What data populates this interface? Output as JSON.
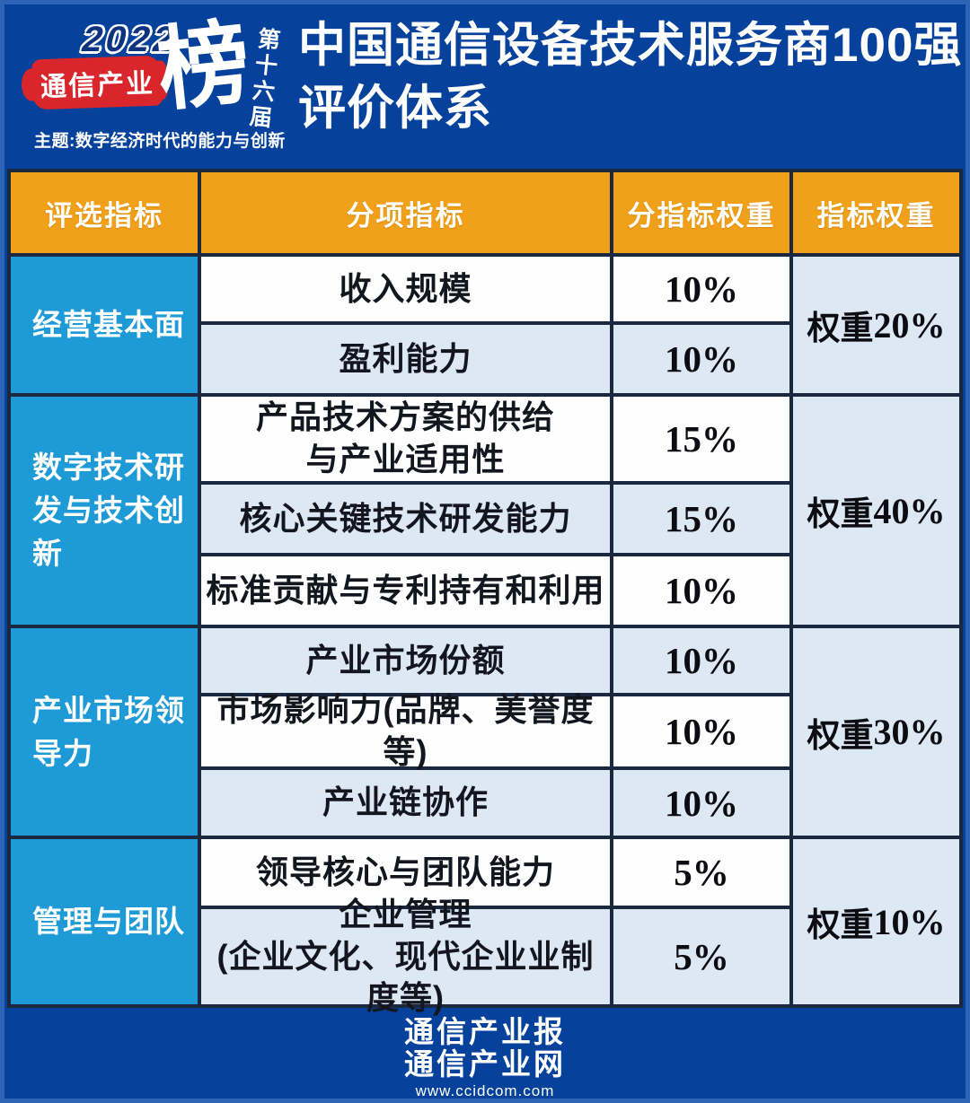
{
  "logo": {
    "year": "2022",
    "brand": "通信产业",
    "big_char": "榜",
    "edition": "第十六届",
    "theme": "主题:数字经济时代的能力与创新"
  },
  "header": {
    "title": "中国通信设备技术服务商100强\n评价体系"
  },
  "table": {
    "columns": [
      "评选指标",
      "分项指标",
      "分指标权重",
      "指标权重"
    ],
    "groups": [
      {
        "name": "经营基本面",
        "weight_prefix": "权重",
        "weight_value": "20%",
        "rows": [
          {
            "label": "收入规模",
            "value": "10%"
          },
          {
            "label": "盈利能力",
            "value": "10%"
          }
        ]
      },
      {
        "name": "数字技术研\n发与技术创\n新",
        "weight_prefix": "权重",
        "weight_value": "40%",
        "rows": [
          {
            "label": "产品技术方案的供给\n与产业适用性",
            "value": "15%"
          },
          {
            "label": "核心关键技术研发能力",
            "value": "15%"
          },
          {
            "label": "标准贡献与专利持有和利用",
            "value": "10%"
          }
        ]
      },
      {
        "name": "产业市场领\n导力",
        "weight_prefix": "权重",
        "weight_value": "30%",
        "rows": [
          {
            "label": "产业市场份额",
            "value": "10%"
          },
          {
            "label": "市场影响力(品牌、美誉度等)",
            "value": "10%"
          },
          {
            "label": "产业链协作",
            "value": "10%"
          }
        ]
      },
      {
        "name": "管理与团队",
        "weight_prefix": "权重",
        "weight_value": "10%",
        "rows": [
          {
            "label": "领导核心与团队能力",
            "value": "5%"
          },
          {
            "label": "企业管理\n(企业文化、现代企业业制度等)",
            "value": "5%"
          }
        ]
      }
    ]
  },
  "footer": {
    "line1": "通信产业报",
    "line2": "通信产业网",
    "url": "www.ccidcom.com"
  },
  "colors": {
    "page_bg": "#06429B",
    "header_orange": "#F1A019",
    "group_cyan": "#1E9AD6",
    "row_light": "#DCE8F4",
    "row_white": "#FEFEFE",
    "border": "#1B2940",
    "brush_red": "#D8262C",
    "year_navy": "#0E337E"
  },
  "chart_data": {
    "type": "table",
    "title": "中国通信设备技术服务商100强评价体系",
    "columns": [
      "评选指标",
      "分项指标",
      "分指标权重",
      "指标权重"
    ],
    "rows": [
      [
        "经营基本面",
        "收入规模",
        "10%",
        "权重20%"
      ],
      [
        "经营基本面",
        "盈利能力",
        "10%",
        "权重20%"
      ],
      [
        "数字技术研发与技术创新",
        "产品技术方案的供给与产业适用性",
        "15%",
        "权重40%"
      ],
      [
        "数字技术研发与技术创新",
        "核心关键技术研发能力",
        "15%",
        "权重40%"
      ],
      [
        "数字技术研发与技术创新",
        "标准贡献与专利持有和利用",
        "10%",
        "权重40%"
      ],
      [
        "产业市场领导力",
        "产业市场份额",
        "10%",
        "权重30%"
      ],
      [
        "产业市场领导力",
        "市场影响力(品牌、美誉度等)",
        "10%",
        "权重30%"
      ],
      [
        "产业市场领导力",
        "产业链协作",
        "10%",
        "权重30%"
      ],
      [
        "管理与团队",
        "领导核心与团队能力",
        "5%",
        "权重10%"
      ],
      [
        "管理与团队",
        "企业管理(企业文化、现代企业业制度等)",
        "5%",
        "权重10%"
      ]
    ]
  }
}
